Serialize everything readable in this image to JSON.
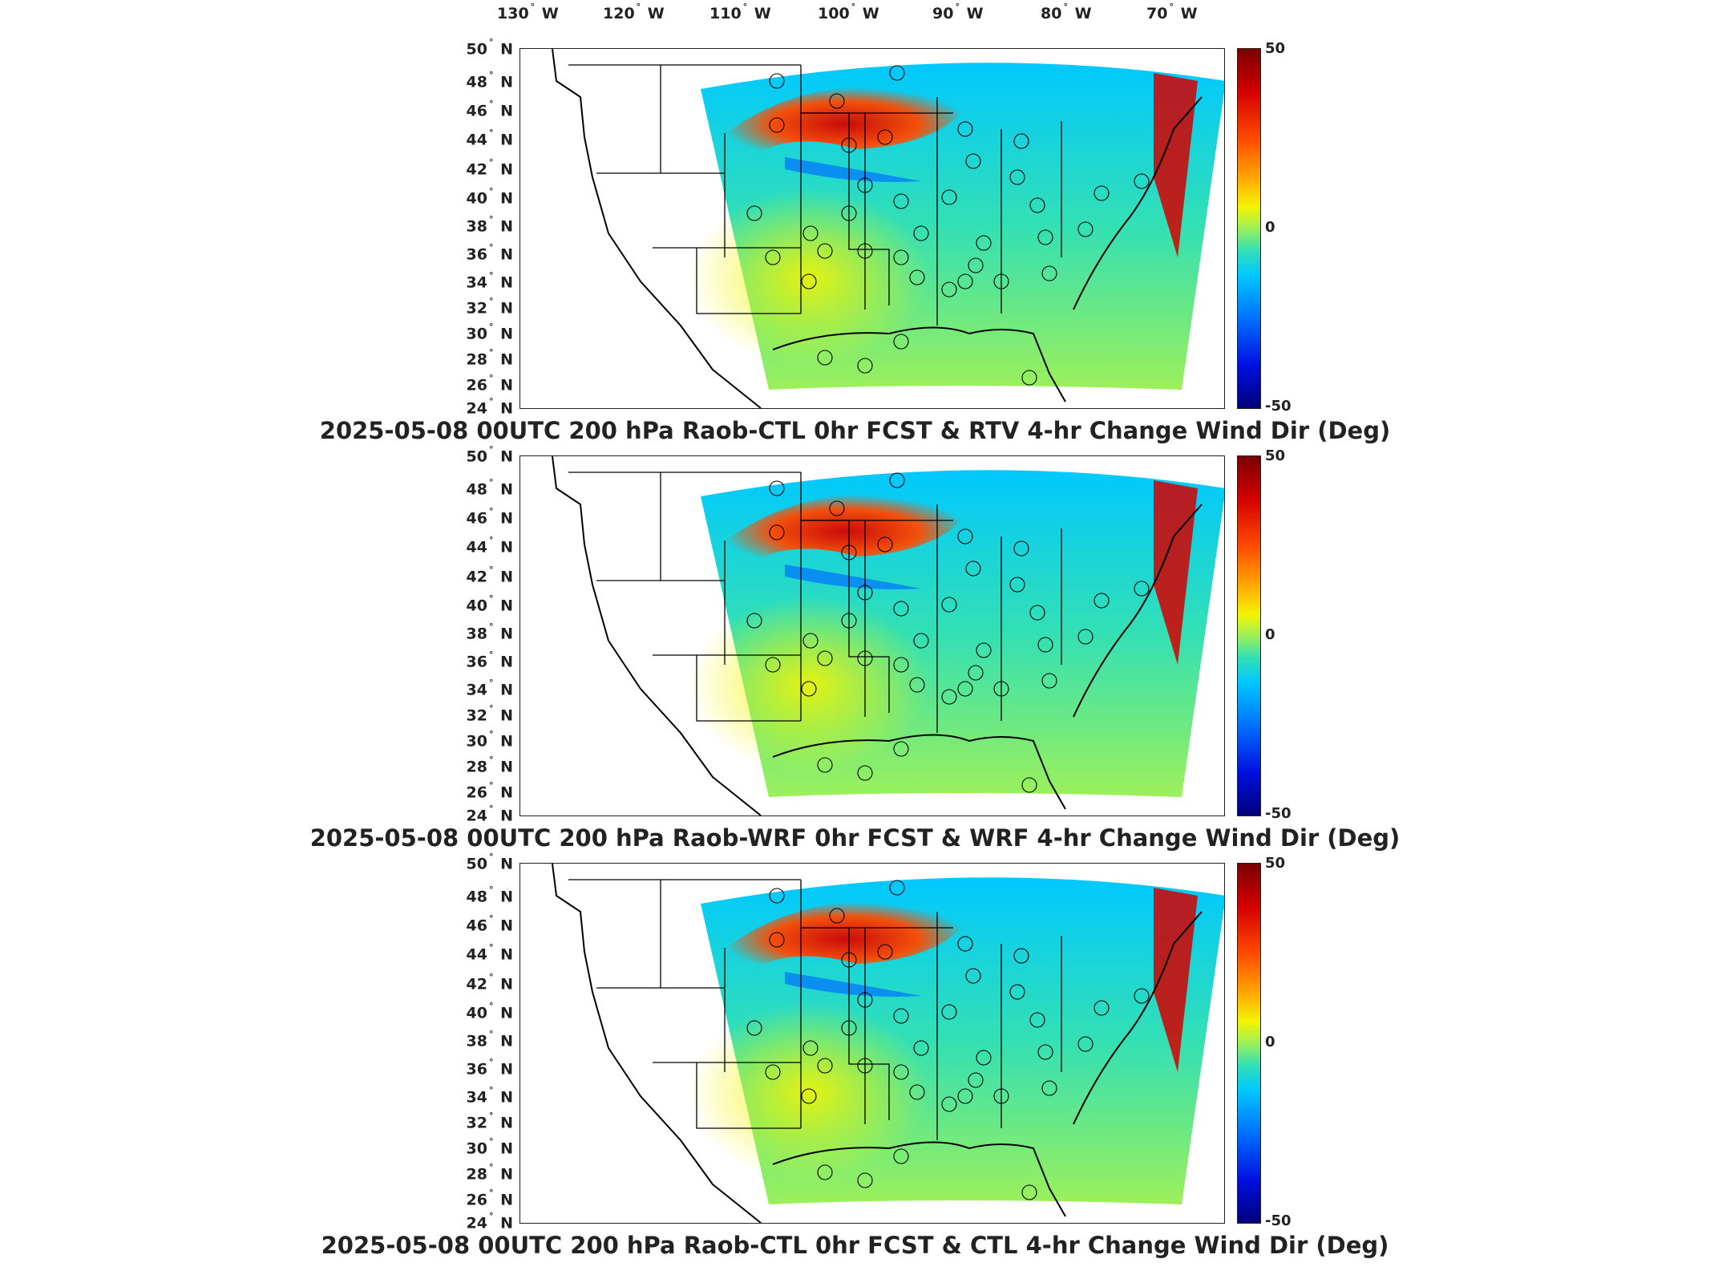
{
  "lon_labels": [
    "130° W",
    "120° W",
    "110° W",
    "100° W",
    "90° W",
    "80° W",
    "70° W"
  ],
  "lat_labels": [
    "50° N",
    "48° N",
    "46° N",
    "44° N",
    "42° N",
    "40° N",
    "38° N",
    "36° N",
    "34° N",
    "32° N",
    "30° N",
    "28° N",
    "26° N",
    "24° N"
  ],
  "colorbar": {
    "max": "50",
    "mid": "0",
    "min": "-50",
    "colors_top_to_bottom": [
      "#7a0000",
      "#d40000",
      "#ff4a00",
      "#ffb000",
      "#f4f400",
      "#9cf05a",
      "#33e0b4",
      "#00c8ff",
      "#0070ff",
      "#0010e0",
      "#00007a"
    ]
  },
  "panels": [
    {
      "title": "2025-05-08 00UTC 200 hPa Raob-CTL 0hr FCST & RTV 4-hr Change Wind Dir (Deg)"
    },
    {
      "title": "2025-05-08 00UTC 200 hPa Raob-WRF 0hr FCST & WRF 4-hr Change Wind Dir (Deg)"
    },
    {
      "title": "2025-05-08 00UTC 200 hPa Raob-CTL 0hr FCST & CTL 4-hr Change Wind Dir (Deg)"
    }
  ]
}
